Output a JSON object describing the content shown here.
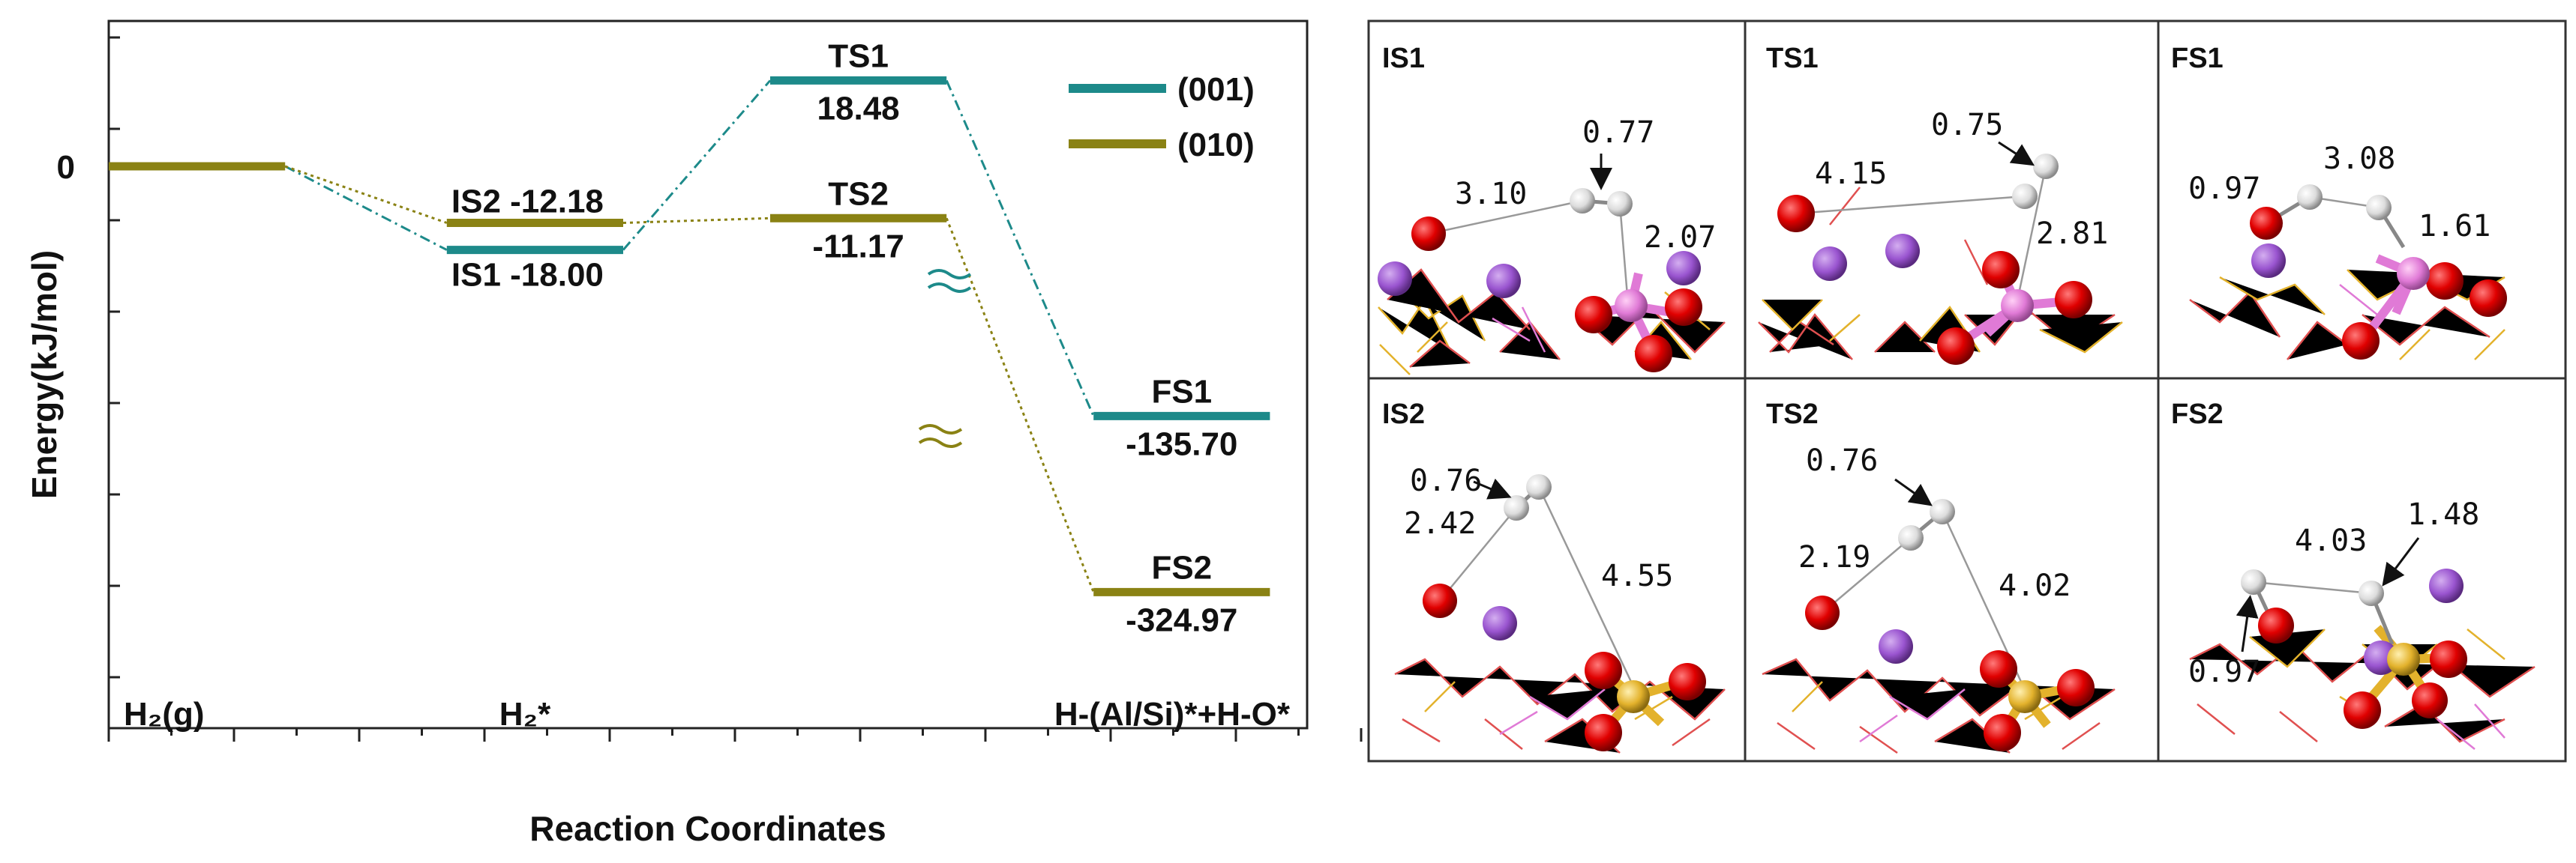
{
  "chart_data": {
    "type": "energy_profile",
    "ylabel": "Energy(kJ/mol)",
    "xlabel": "Reaction Coordinates",
    "ylim": [
      -450,
      55
    ],
    "y_zero_label": "0",
    "legend": [
      {
        "name": "(001)",
        "color": "#1d8a8a"
      },
      {
        "name": "(010)",
        "color": "#8a8214"
      }
    ],
    "stages": [
      "H₂(g)",
      "H₂*",
      "H-(Al/Si)*+H-O*"
    ],
    "levels": [
      {
        "id": "H2g",
        "series": "both",
        "x": [
          0,
          1.2
        ],
        "energy": 0
      },
      {
        "id": "IS1",
        "series": "(001)",
        "x": [
          2.3,
          3.5
        ],
        "energy": -18.0,
        "label": "IS1",
        "value": "-18.00",
        "label_pos": "below-inline"
      },
      {
        "id": "IS2",
        "series": "(010)",
        "x": [
          2.3,
          3.5
        ],
        "energy": -12.18,
        "label": "IS2",
        "value": "-12.18",
        "label_pos": "above-inline"
      },
      {
        "id": "TS1",
        "series": "(001)",
        "x": [
          4.5,
          5.7
        ],
        "energy": 18.48,
        "label": "TS1",
        "value": "18.48",
        "label_pos": "stacked"
      },
      {
        "id": "TS2",
        "series": "(010)",
        "x": [
          4.5,
          5.7
        ],
        "energy": -11.17,
        "label": "TS2",
        "value": "-11.17",
        "label_pos": "stacked"
      },
      {
        "id": "FS1",
        "series": "(001)",
        "x": [
          6.7,
          7.9
        ],
        "energy": -135.7,
        "label": "FS1",
        "value": "-135.70",
        "label_pos": "stacked"
      },
      {
        "id": "FS2",
        "series": "(010)",
        "x": [
          6.7,
          7.9
        ],
        "energy": -324.97,
        "label": "FS2",
        "value": "-324.97",
        "label_pos": "stacked"
      }
    ],
    "connectors": [
      {
        "series": "(001)",
        "from": "H2g",
        "to": "IS1"
      },
      {
        "series": "(001)",
        "from": "IS1",
        "to": "TS1"
      },
      {
        "series": "(001)",
        "from": "TS1",
        "to": "FS1"
      },
      {
        "series": "(010)",
        "from": "H2g",
        "to": "IS2"
      },
      {
        "series": "(010)",
        "from": "IS2",
        "to": "TS2"
      },
      {
        "series": "(010)",
        "from": "TS2",
        "to": "FS2"
      }
    ]
  },
  "structures": {
    "panels": [
      {
        "title": "IS1",
        "distances": [
          "0.77",
          "3.10",
          "2.07"
        ]
      },
      {
        "title": "TS1",
        "distances": [
          "0.75",
          "4.15",
          "2.81"
        ]
      },
      {
        "title": "FS1",
        "distances": [
          "0.97",
          "3.08",
          "1.61"
        ]
      },
      {
        "title": "IS2",
        "distances": [
          "0.76",
          "2.42",
          "4.55"
        ]
      },
      {
        "title": "TS2",
        "distances": [
          "0.76",
          "2.19",
          "4.02"
        ]
      },
      {
        "title": "FS2",
        "distances": [
          "4.03",
          "1.48",
          "0.97"
        ]
      }
    ]
  },
  "colors": {
    "s001": "#1d8a8a",
    "s010": "#8a8214",
    "oxygen": "#e00000",
    "hydrogen": "#e8e8e8",
    "potassium": "#9a55d0",
    "aluminum": "#e07ad6",
    "silicon": "#e3b22c"
  }
}
